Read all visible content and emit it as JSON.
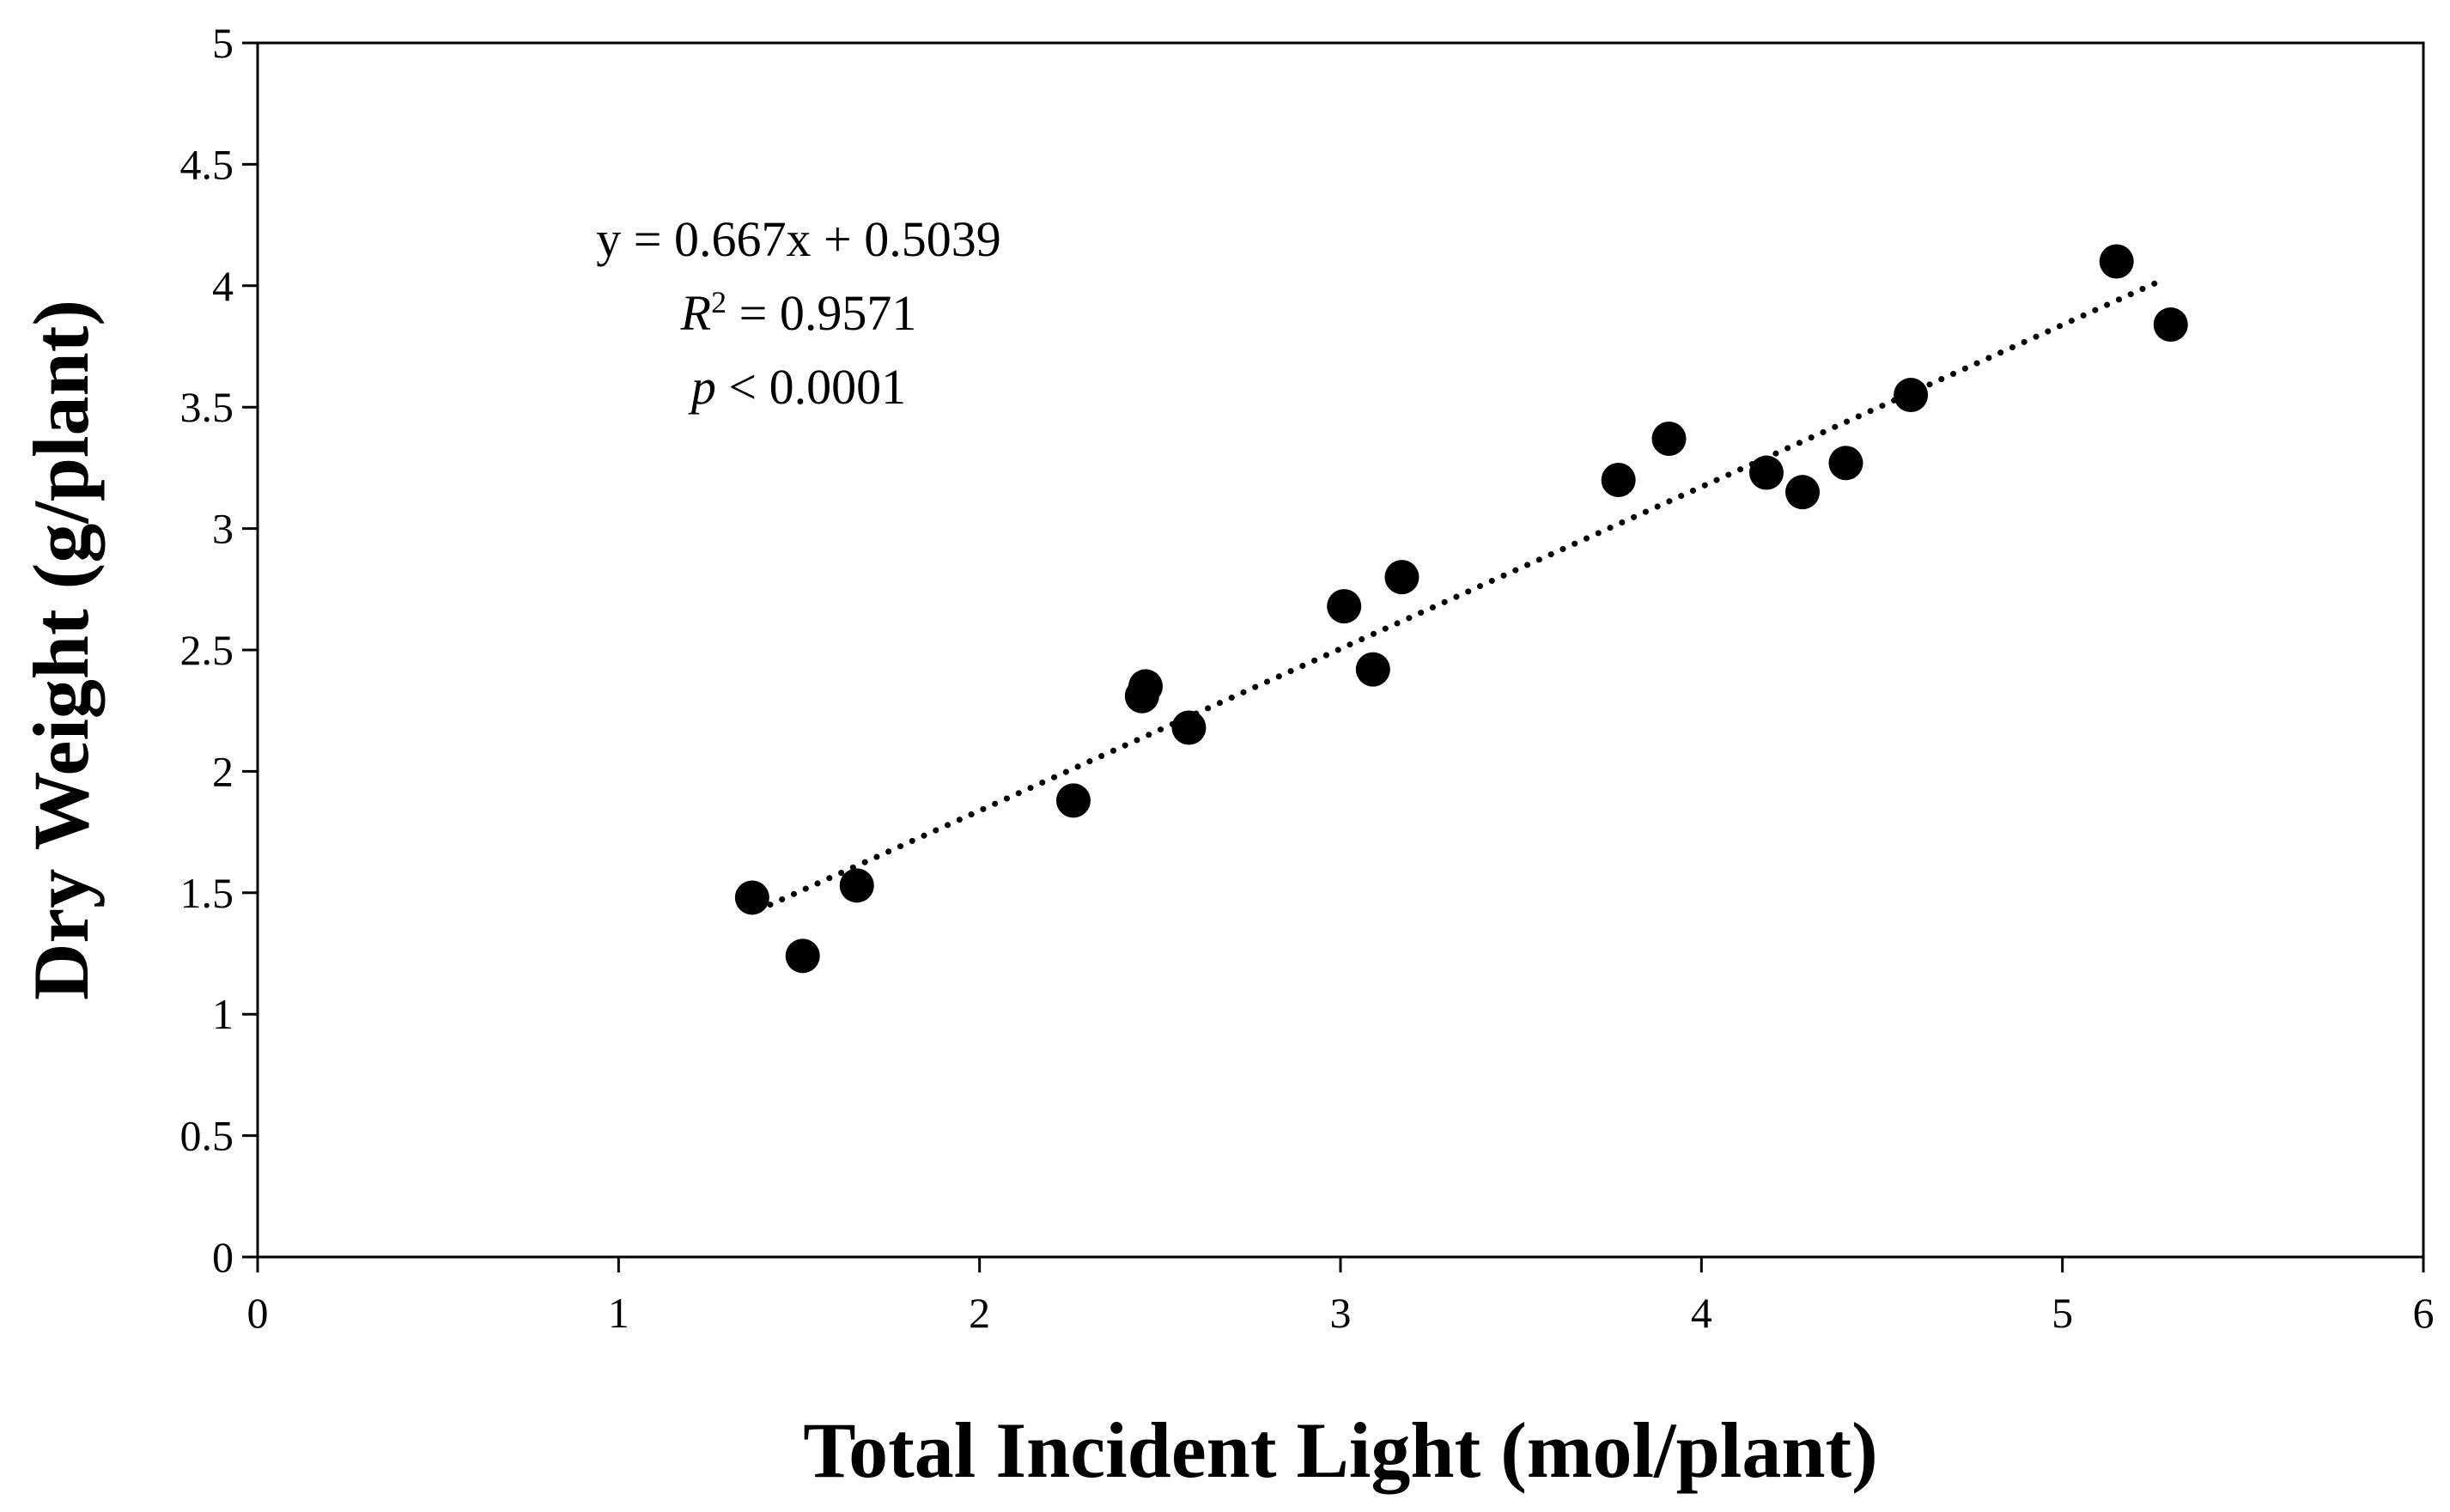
{
  "chart_data": {
    "type": "scatter",
    "title": "",
    "xlabel": "Total Incident Light (mol/plant)",
    "ylabel": "Dry Weight (g/plant)",
    "xlim": [
      0,
      6
    ],
    "ylim": [
      0,
      5
    ],
    "xticks": [
      0,
      1,
      2,
      3,
      4,
      5,
      6
    ],
    "xtick_labels": [
      "0",
      "1",
      "2",
      "3",
      "4",
      "5",
      "6"
    ],
    "yticks": [
      0,
      0.5,
      1,
      1.5,
      2,
      2.5,
      3,
      3.5,
      4,
      4.5,
      5
    ],
    "ytick_labels": [
      "0",
      "0.5",
      "1",
      "1.5",
      "2",
      "2.5",
      "3",
      "3.5",
      "4",
      "4.5",
      "5"
    ],
    "grid": false,
    "legend": "none",
    "series": [
      {
        "name": "Dry Weight",
        "marker": "circle",
        "color": "#000000",
        "x": [
          1.37,
          1.51,
          1.66,
          2.26,
          2.45,
          2.46,
          2.58,
          3.01,
          3.09,
          3.17,
          3.77,
          3.91,
          4.18,
          4.28,
          4.4,
          4.58,
          5.15,
          5.3
        ],
        "y": [
          1.48,
          1.24,
          1.53,
          1.88,
          2.31,
          2.35,
          2.18,
          2.68,
          2.42,
          2.8,
          3.2,
          3.37,
          3.23,
          3.15,
          3.27,
          3.55,
          4.1,
          3.84
        ]
      }
    ],
    "trendline": {
      "type": "linear",
      "style": "dotted",
      "slope": 0.667,
      "intercept": 0.5039,
      "x_range": [
        1.42,
        5.28
      ]
    },
    "annotations": {
      "equation": "y = 0.667x + 0.5039",
      "r2_symbol": "R",
      "r2_sup": "2",
      "r2_rest": " = 0.9571",
      "p_symbol": "p",
      "p_rest": " < 0.0001"
    }
  }
}
